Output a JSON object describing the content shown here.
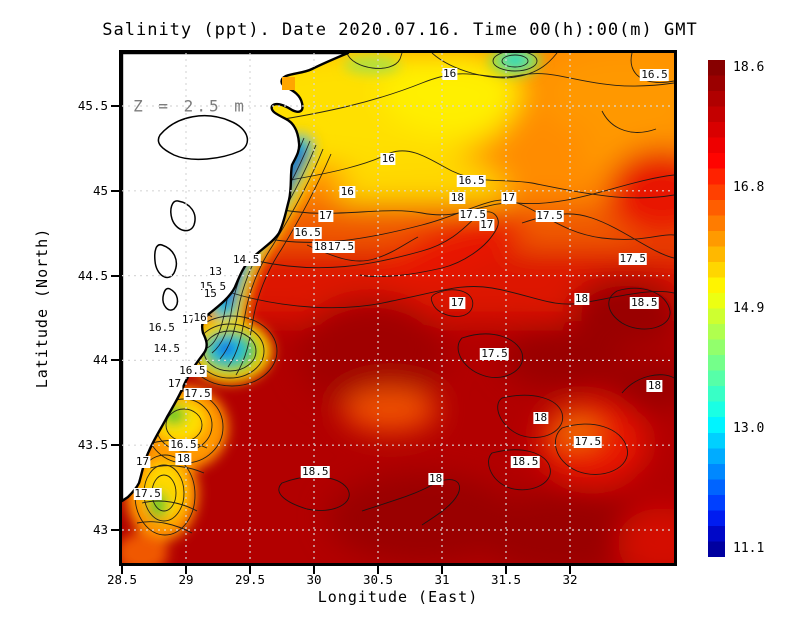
{
  "title": "Salinity (ppt). Date 2020.07.16. Time 00(h):00(m) GMT",
  "annotation": "Z = 2.5 m",
  "x_axis": {
    "label": "Longitude (East)",
    "tick_labels": [
      "28.5",
      "29",
      "29.5",
      "30",
      "30.5",
      "31",
      "31.5",
      "32"
    ],
    "tick_values": [
      28.5,
      29,
      29.5,
      30,
      30.5,
      31,
      31.5,
      32
    ]
  },
  "y_axis": {
    "label": "Latitude (North)",
    "tick_labels": [
      "45.5",
      "45",
      "44.5",
      "44",
      "43.5",
      "43"
    ],
    "tick_values": [
      45.5,
      45,
      44.5,
      44,
      43.5,
      43
    ]
  },
  "colorbar": {
    "tick_labels": [
      "18.6",
      "16.8",
      "14.9",
      "13.0",
      "11.1"
    ],
    "max": 18.6,
    "min": 11.1,
    "colors_top_to_bottom": [
      "#870000",
      "#9b0000",
      "#b00000",
      "#c40000",
      "#d90000",
      "#ee0000",
      "#ff0400",
      "#ff2200",
      "#ff4000",
      "#ff5e00",
      "#ff7c00",
      "#ff9a00",
      "#ffb800",
      "#ffd600",
      "#fff400",
      "#ecff12",
      "#ceff30",
      "#b0ff4e",
      "#92ff6c",
      "#74ff8a",
      "#56ffa8",
      "#38ffc6",
      "#1affe4",
      "#00f4ff",
      "#00d0ff",
      "#00acff",
      "#0088ff",
      "#0064ff",
      "#0040ff",
      "#001cf0",
      "#0008c8",
      "#0000a0"
    ]
  },
  "chart_data": {
    "type": "heatmap",
    "title": "Salinity (ppt). Date 2020.07.16. Time 00(h):00(m) GMT",
    "variable": "Salinity (ppt)",
    "date": "2020.07.16",
    "time": "00(h):00(m) GMT",
    "depth": "2.5 m",
    "xlabel": "Longitude (East)",
    "ylabel": "Latitude (North)",
    "x_range": [
      28.5,
      32.81
    ],
    "y_range": [
      42.81,
      45.81
    ],
    "value_range": [
      11.1,
      18.6
    ],
    "contour_interval": 0.5,
    "grid": {
      "step_deg": 0.5,
      "style": "dotted",
      "color": "#d8d8d8"
    },
    "legend_position": "right-colorbar",
    "land_color": "#ffffff",
    "contour_labels": [
      {
        "value": "16",
        "lon": 31.06,
        "lat": 45.69
      },
      {
        "value": "16.5",
        "lon": 32.66,
        "lat": 45.68
      },
      {
        "value": "16",
        "lon": 30.58,
        "lat": 45.19
      },
      {
        "value": "16",
        "lon": 30.26,
        "lat": 44.99
      },
      {
        "value": "16.5",
        "lon": 31.23,
        "lat": 45.06
      },
      {
        "value": "18",
        "lon": 31.12,
        "lat": 44.96
      },
      {
        "value": "17",
        "lon": 31.52,
        "lat": 44.96
      },
      {
        "value": "17.5",
        "lon": 31.24,
        "lat": 44.86
      },
      {
        "value": "17",
        "lon": 31.35,
        "lat": 44.8
      },
      {
        "value": "17.5",
        "lon": 31.84,
        "lat": 44.85
      },
      {
        "value": "17",
        "lon": 30.09,
        "lat": 44.85
      },
      {
        "value": "16.5",
        "lon": 29.95,
        "lat": 44.75
      },
      {
        "value": "18",
        "lon": 30.05,
        "lat": 44.67
      },
      {
        "value": "17.5",
        "lon": 30.21,
        "lat": 44.67
      },
      {
        "value": "14.5",
        "lon": 29.47,
        "lat": 44.59
      },
      {
        "value": "13",
        "lon": 29.23,
        "lat": 44.52
      },
      {
        "value": "15.5",
        "lon": 29.21,
        "lat": 44.43
      },
      {
        "value": "15",
        "lon": 29.19,
        "lat": 44.39
      },
      {
        "value": "17",
        "lon": 29.02,
        "lat": 44.24
      },
      {
        "value": "16",
        "lon": 29.11,
        "lat": 44.25
      },
      {
        "value": "16.5",
        "lon": 28.81,
        "lat": 44.19
      },
      {
        "value": "14.5",
        "lon": 28.85,
        "lat": 44.07
      },
      {
        "value": "16.5",
        "lon": 29.05,
        "lat": 43.94
      },
      {
        "value": "17",
        "lon": 28.91,
        "lat": 43.86
      },
      {
        "value": "17.5",
        "lon": 29.09,
        "lat": 43.8
      },
      {
        "value": "17",
        "lon": 31.12,
        "lat": 44.34
      },
      {
        "value": "17.5",
        "lon": 32.49,
        "lat": 44.6
      },
      {
        "value": "18",
        "lon": 32.09,
        "lat": 44.36
      },
      {
        "value": "18.5",
        "lon": 32.58,
        "lat": 44.34
      },
      {
        "value": "17.5",
        "lon": 31.41,
        "lat": 44.04
      },
      {
        "value": "18",
        "lon": 32.66,
        "lat": 43.85
      },
      {
        "value": "18",
        "lon": 31.77,
        "lat": 43.66
      },
      {
        "value": "17.5",
        "lon": 32.14,
        "lat": 43.52
      },
      {
        "value": "18.5",
        "lon": 31.65,
        "lat": 43.4
      },
      {
        "value": "18",
        "lon": 30.95,
        "lat": 43.3
      },
      {
        "value": "18.5",
        "lon": 30.01,
        "lat": 43.34
      },
      {
        "value": "16.5",
        "lon": 28.98,
        "lat": 43.5
      },
      {
        "value": "18",
        "lon": 28.98,
        "lat": 43.42
      },
      {
        "value": "17",
        "lon": 28.66,
        "lat": 43.4
      },
      {
        "value": "17.5",
        "lon": 28.7,
        "lat": 43.21
      }
    ]
  }
}
